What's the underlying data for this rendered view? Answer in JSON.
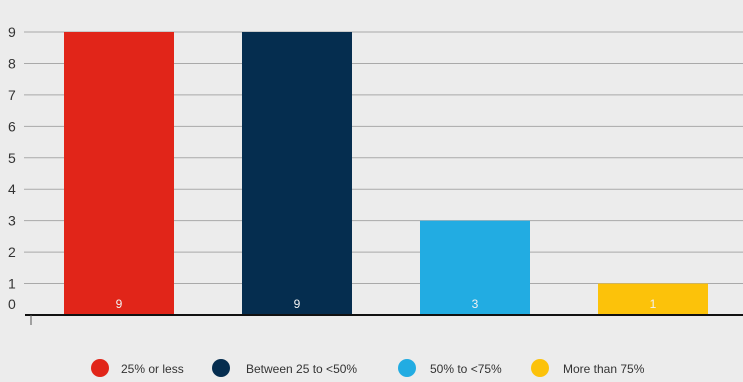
{
  "chart_data": {
    "type": "bar",
    "categories": [
      "25% or less",
      "Between 25 to <50%",
      "50% to <75%",
      "More than 75%"
    ],
    "values": [
      9,
      9,
      3,
      1
    ],
    "data_labels": [
      "9",
      "9",
      "3",
      "1"
    ],
    "colors": [
      "#e12519",
      "#052d4f",
      "#22ace2",
      "#fcc20a"
    ],
    "ylim": [
      0,
      9
    ],
    "yticks": [
      "0",
      "1",
      "2",
      "3",
      "4",
      "5",
      "6",
      "7",
      "8",
      "9"
    ],
    "title": "",
    "xlabel": "",
    "ylabel": "",
    "grid": true,
    "legend_position": "bottom"
  }
}
